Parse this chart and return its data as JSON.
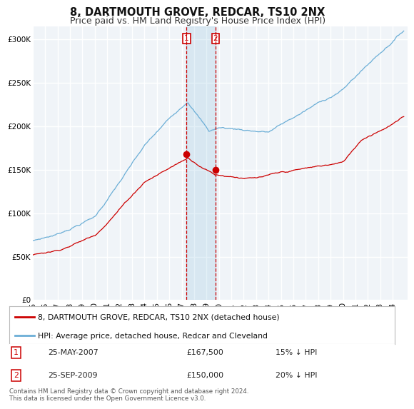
{
  "title": "8, DARTMOUTH GROVE, REDCAR, TS10 2NX",
  "subtitle": "Price paid vs. HM Land Registry's House Price Index (HPI)",
  "ylabel_ticks": [
    "£0",
    "£50K",
    "£100K",
    "£150K",
    "£200K",
    "£250K",
    "£300K"
  ],
  "ytick_values": [
    0,
    50000,
    100000,
    150000,
    200000,
    250000,
    300000
  ],
  "ylim": [
    0,
    315000
  ],
  "xlim_start": 1995.0,
  "xlim_end": 2025.2,
  "hpi_color": "#6baed6",
  "price_color": "#cc0000",
  "marker1_date": 2007.38,
  "marker2_date": 2009.73,
  "marker1_price": 167500,
  "marker2_price": 150000,
  "marker1_label": "25-MAY-2007",
  "marker2_label": "25-SEP-2009",
  "marker1_pct": "15% ↓ HPI",
  "marker2_pct": "20% ↓ HPI",
  "legend_line1": "8, DARTMOUTH GROVE, REDCAR, TS10 2NX (detached house)",
  "legend_line2": "HPI: Average price, detached house, Redcar and Cleveland",
  "footer": "Contains HM Land Registry data © Crown copyright and database right 2024.\nThis data is licensed under the Open Government Licence v3.0.",
  "bg_color": "#ffffff",
  "plot_bg_color": "#f0f4f8",
  "grid_color": "#ffffff",
  "title_fontsize": 10.5,
  "subtitle_fontsize": 9,
  "tick_fontsize": 7.5,
  "xtick_labels": [
    "95",
    "96",
    "97",
    "98",
    "99",
    "00",
    "01",
    "02",
    "03",
    "04",
    "05",
    "06",
    "07",
    "08",
    "09",
    "10",
    "11",
    "12",
    "13",
    "14",
    "15",
    "16",
    "17",
    "18",
    "19",
    "20",
    "21",
    "22",
    "23",
    "24"
  ],
  "xtick_values": [
    1995,
    1996,
    1997,
    1998,
    1999,
    2000,
    2001,
    2002,
    2003,
    2004,
    2005,
    2006,
    2007,
    2008,
    2009,
    2010,
    2011,
    2012,
    2013,
    2014,
    2015,
    2016,
    2017,
    2018,
    2019,
    2020,
    2021,
    2022,
    2023,
    2024
  ]
}
